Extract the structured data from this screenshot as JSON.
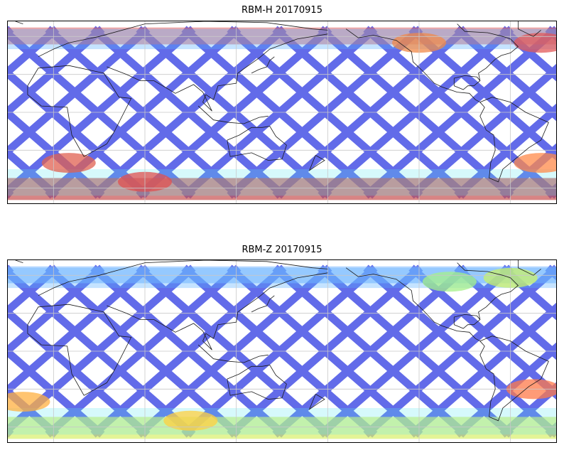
{
  "panels": [
    {
      "id": "top",
      "title": "RBM-H 20170915",
      "band_color_north": "#e06060",
      "band_color_south": "#c85050",
      "hotspots": [
        {
          "lon": -40,
          "lat": 55,
          "color": "#e25a5a"
        },
        {
          "lon": -120,
          "lat": 55,
          "color": "#f08a4a"
        },
        {
          "lon": 10,
          "lat": -40,
          "color": "#e06050"
        },
        {
          "lon": 60,
          "lat": -55,
          "color": "#e05050"
        },
        {
          "lon": -40,
          "lat": -40,
          "color": "#ff8a4a"
        }
      ]
    },
    {
      "id": "bottom",
      "title": "RBM-Z 20170915",
      "band_color_north": "#7ab8ff",
      "band_color_south": "#d8f06a",
      "hotspots": [
        {
          "lon": -45,
          "lat": -30,
          "color": "#ff7a4a"
        },
        {
          "lon": -20,
          "lat": -40,
          "color": "#ffb040"
        },
        {
          "lon": 90,
          "lat": -55,
          "color": "#ffcf40"
        },
        {
          "lon": -100,
          "lat": 55,
          "color": "#a6f08a"
        },
        {
          "lon": -60,
          "lat": 58,
          "color": "#c8f06a"
        }
      ]
    }
  ],
  "palette": {
    "track_main": "#5a64e8",
    "track_light": "#5ab0ff",
    "track_cyan": "#5ae8f0",
    "track_green": "#8af08a",
    "track_yellow": "#f0e85a",
    "track_orange": "#ff9a4a",
    "track_red": "#e05a5a",
    "coast": "#1a1a1a",
    "grid": "#c8c8c8"
  }
}
